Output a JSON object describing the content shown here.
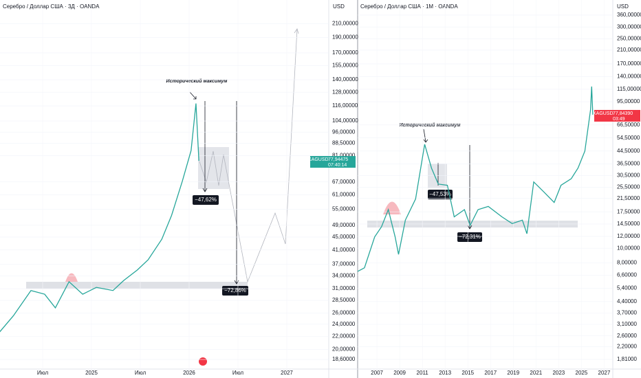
{
  "chart_data": [
    {
      "type": "line",
      "title": "Серебро / Доллар США · 3Д · OANDA",
      "y_unit": "USD",
      "log_scale": true,
      "grid": true,
      "color": "#26a69a",
      "xlim": [
        2024.063,
        2027.43
      ],
      "xticks": [
        {
          "value": 2024.5,
          "label": "Июл"
        },
        {
          "value": 2025,
          "label": "2025"
        },
        {
          "value": 2025.5,
          "label": "Июл"
        },
        {
          "value": 2026,
          "label": "2026"
        },
        {
          "value": 2026.5,
          "label": "Июл"
        },
        {
          "value": 2027,
          "label": "2027"
        }
      ],
      "ylim": [
        17.36,
        249
      ],
      "yticks": [
        {
          "value": 210,
          "label": "210,00000"
        },
        {
          "value": 190,
          "label": "190,00000"
        },
        {
          "value": 170,
          "label": "170,00000"
        },
        {
          "value": 155,
          "label": "155,00000"
        },
        {
          "value": 140,
          "label": "140,00000"
        },
        {
          "value": 128,
          "label": "128,00000"
        },
        {
          "value": 116,
          "label": "116,00000"
        },
        {
          "value": 104,
          "label": "104,00000"
        },
        {
          "value": 96,
          "label": "96,00000"
        },
        {
          "value": 88.5,
          "label": "88,50000"
        },
        {
          "value": 81,
          "label": "81,00000"
        },
        {
          "value": 67,
          "label": "67,00000"
        },
        {
          "value": 61,
          "label": "61,00000"
        },
        {
          "value": 55,
          "label": "55,00000"
        },
        {
          "value": 49,
          "label": "49,00000"
        },
        {
          "value": 45,
          "label": "45,00000"
        },
        {
          "value": 41,
          "label": "41,00000"
        },
        {
          "value": 37,
          "label": "37,00000"
        },
        {
          "value": 34,
          "label": "34,00000"
        },
        {
          "value": 31,
          "label": "31,00000"
        },
        {
          "value": 28.5,
          "label": "28,50000"
        },
        {
          "value": 26,
          "label": "26,00000"
        },
        {
          "value": 24,
          "label": "24,00000"
        },
        {
          "value": 22,
          "label": "22,00000"
        },
        {
          "value": 20,
          "label": "20,00000"
        },
        {
          "value": 18.6,
          "label": "18,60000"
        }
      ],
      "x": [
        2024.06,
        2024.2,
        2024.38,
        2024.52,
        2024.63,
        2024.77,
        2024.91,
        2025.05,
        2025.22,
        2025.33,
        2025.47,
        2025.58,
        2025.72,
        2025.82,
        2025.93,
        2026.02,
        2026.07,
        2026.1
      ],
      "values": [
        22.7,
        25.5,
        30.6,
        29.8,
        27.0,
        32.6,
        29.8,
        31.3,
        30.6,
        32.9,
        35.5,
        38.2,
        44.3,
        52.6,
        67.3,
        84,
        118,
        78
      ],
      "annotation": "Исторический максимум",
      "drop_labels": [
        "−47,62%",
        "−72,86%"
      ],
      "symbol": "XAGUSD",
      "last_price_label": "77,94475",
      "timer": "07:40:14",
      "badge_color": "#26a69a"
    },
    {
      "type": "line",
      "title": "Серебро / Доллар США · 1М · OANDA",
      "y_unit": "USD",
      "log_scale": true,
      "grid": true,
      "color": "#26a69a",
      "xlim": [
        2005.3,
        2027.7
      ],
      "xticks": [
        2007,
        2009,
        2011,
        2013,
        2015,
        2017,
        2019,
        2021,
        2023,
        2025,
        2027
      ],
      "ylim": [
        1.56,
        454
      ],
      "yticks": [
        {
          "value": 360,
          "label": "360,00000"
        },
        {
          "value": 300,
          "label": "300,00000"
        },
        {
          "value": 250,
          "label": "250,00000"
        },
        {
          "value": 210,
          "label": "210,00000"
        },
        {
          "value": 170,
          "label": "170,00000"
        },
        {
          "value": 140,
          "label": "140,00000"
        },
        {
          "value": 115,
          "label": "115,00000"
        },
        {
          "value": 95,
          "label": "95,00000"
        },
        {
          "value": 66.5,
          "label": "66,50000"
        },
        {
          "value": 54.5,
          "label": "54,50000"
        },
        {
          "value": 44.5,
          "label": "44,50000"
        },
        {
          "value": 36.5,
          "label": "36,50000"
        },
        {
          "value": 30.5,
          "label": "30,50000"
        },
        {
          "value": 25.5,
          "label": "25,50000"
        },
        {
          "value": 21.5,
          "label": "21,50000"
        },
        {
          "value": 17.5,
          "label": "17,50000"
        },
        {
          "value": 14.5,
          "label": "14,50000"
        },
        {
          "value": 12,
          "label": "12,00000"
        },
        {
          "value": 10,
          "label": "10,00000"
        },
        {
          "value": 8,
          "label": "8,00000"
        },
        {
          "value": 6.6,
          "label": "6,60000"
        },
        {
          "value": 5.4,
          "label": "5,40000"
        },
        {
          "value": 4.4,
          "label": "4,40000"
        },
        {
          "value": 3.7,
          "label": "3,70000"
        },
        {
          "value": 3.1,
          "label": "3,10000"
        },
        {
          "value": 2.6,
          "label": "2,60000"
        },
        {
          "value": 2.2,
          "label": "2,20000"
        },
        {
          "value": 1.81,
          "label": "1,81000"
        }
      ],
      "x": [
        2005.3,
        2005.9,
        2006.8,
        2007.4,
        2008.0,
        2008.6,
        2008.9,
        2009.5,
        2010.4,
        2011.2,
        2011.8,
        2012.4,
        2013.2,
        2013.8,
        2014.7,
        2015.2,
        2015.9,
        2016.8,
        2018.0,
        2018.9,
        2019.8,
        2020.2,
        2020.8,
        2021.7,
        2022.6,
        2023.2,
        2024.1,
        2024.7,
        2025.3,
        2025.8,
        2025.9,
        2026.0
      ],
      "values": [
        7.0,
        7.4,
        11.9,
        13.9,
        18.1,
        11.9,
        9.1,
        15.4,
        21.3,
        49.4,
        34.3,
        26.8,
        26.3,
        16.2,
        18.1,
        14.2,
        18.1,
        19.0,
        16.2,
        14.6,
        15.4,
        12.5,
        27.7,
        23.7,
        20.2,
        26.3,
        29.1,
        34.3,
        44.5,
        83.8,
        120,
        77.8
      ],
      "annotation": "Исторический максимум",
      "drop_labels": [
        "−47,53%",
        "−72,31%"
      ],
      "symbol": "XAGUSD",
      "last_price_label": "77,84390",
      "timer": "03:49",
      "badge_color": "#f23645"
    }
  ]
}
